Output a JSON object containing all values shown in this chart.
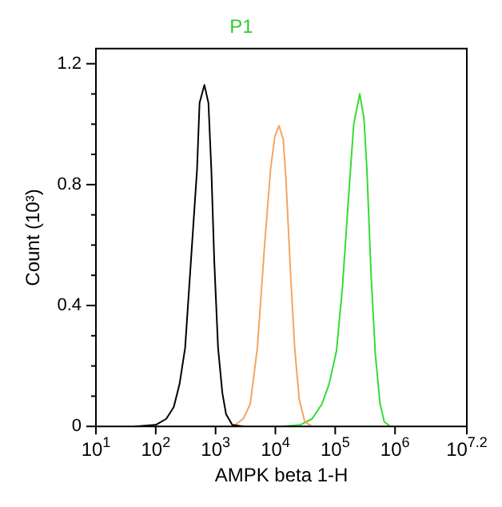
{
  "chart_data": {
    "type": "line",
    "title": "P1",
    "xlabel": "AMPK beta 1-H",
    "ylabel": "Count (10³)",
    "log": "x",
    "grid": false,
    "legend": false,
    "marker": "none",
    "xlim": [
      10,
      15848932
    ],
    "xticks": [
      {
        "value": 10,
        "label": "10$^{1}$"
      },
      {
        "value": 100,
        "label": "10$^{2}$"
      },
      {
        "value": 1000,
        "label": "10$^{3}$"
      },
      {
        "value": 10000,
        "label": "10$^{4}$"
      },
      {
        "value": 100000,
        "label": "10$^{5}$"
      },
      {
        "value": 1000000,
        "label": "10$^{6}$"
      },
      {
        "value": 15848932,
        "label": "10$^{7.2}$"
      }
    ],
    "ylim": [
      0,
      1.25
    ],
    "yticks": [
      0,
      {
        "value": 0.1,
        "label": null
      },
      {
        "value": 0.2,
        "label": null
      },
      {
        "value": 0.3,
        "label": null
      },
      0.4,
      {
        "value": 0.5,
        "label": null
      },
      {
        "value": 0.6,
        "label": null
      },
      {
        "value": 0.7,
        "label": null
      },
      0.8,
      {
        "value": 0.9,
        "label": null
      },
      {
        "value": 1.0,
        "label": null
      },
      {
        "value": 1.1,
        "label": null
      },
      1.2
    ],
    "series": [
      {
        "color": "#000000",
        "x": [
          45,
          100,
          150,
          200,
          250,
          310,
          490,
          540,
          650,
          760,
          850,
          950,
          1100,
          1300,
          1500,
          1900,
          2900
        ],
        "values": [
          0,
          0.005,
          0.025,
          0.064,
          0.14,
          0.26,
          0.85,
          1.07,
          1.13,
          1.07,
          0.85,
          0.55,
          0.26,
          0.11,
          0.04,
          0.005,
          0
        ]
      },
      {
        "color": "#f4a460",
        "x": [
          1950,
          2900,
          3800,
          5000,
          6600,
          8300,
          9800,
          11500,
          13500,
          15000,
          18000,
          21000,
          25000,
          31000,
          41000
        ],
        "values": [
          0,
          0.025,
          0.074,
          0.26,
          0.6,
          0.85,
          0.96,
          0.995,
          0.95,
          0.82,
          0.5,
          0.26,
          0.09,
          0.015,
          0
        ]
      },
      {
        "color": "#33dd33",
        "x": [
          13000,
          26000,
          41000,
          60000,
          79000,
          105000,
          132000,
          166000,
          204000,
          257000,
          302000,
          339000,
          398000,
          468000,
          562000,
          661000,
          832000
        ],
        "values": [
          0,
          0.005,
          0.025,
          0.074,
          0.14,
          0.25,
          0.46,
          0.75,
          1.0,
          1.1,
          1.02,
          0.85,
          0.5,
          0.24,
          0.074,
          0.015,
          0
        ]
      }
    ]
  }
}
